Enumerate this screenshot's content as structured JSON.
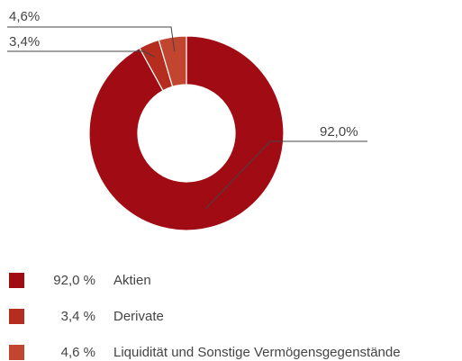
{
  "chart_data": {
    "type": "donut",
    "categories": [
      "Aktien",
      "Derivate",
      "Liquidität und Sonstige Vermögensgegenstände"
    ],
    "values": [
      92.0,
      3.4,
      4.6
    ],
    "value_labels": [
      "92,0%",
      "3,4%",
      "4,6%"
    ],
    "legend_value_labels": [
      "92,0 %",
      "3,4 %",
      "4,6 %"
    ],
    "colors": [
      "#a10b13",
      "#b42d1f",
      "#c2452f"
    ]
  }
}
